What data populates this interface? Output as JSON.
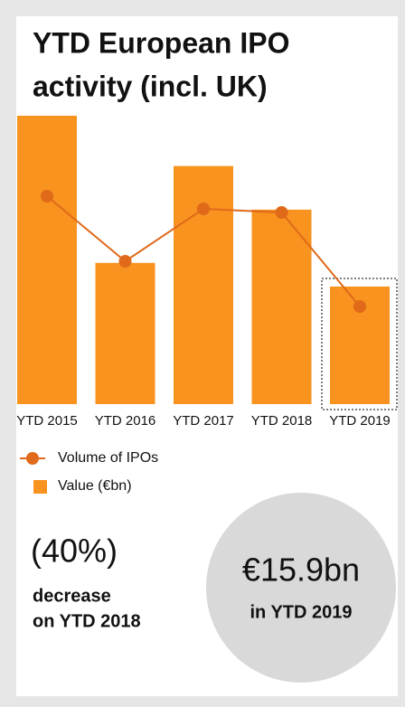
{
  "chart_data": {
    "type": "bar-line",
    "title": [
      "YTD European IPO",
      "activity (incl. UK)"
    ],
    "categories": [
      "YTD 2015",
      "YTD 2016",
      "YTD 2017",
      "YTD 2018",
      "YTD 2019"
    ],
    "series": [
      {
        "name": "Value (€bn)",
        "type": "bar",
        "color": "#f7931e",
        "values": [
          39.0,
          19.1,
          32.2,
          26.3,
          15.9
        ]
      },
      {
        "name": "Volume of IPOs",
        "type": "line",
        "color": "#e0691a",
        "values": [
          115,
          79,
          108,
          106,
          54
        ]
      }
    ],
    "highlight": "YTD 2019",
    "callouts": [
      {
        "headline": "(40%)",
        "lines": [
          "decrease",
          "on YTD 2018"
        ]
      },
      {
        "headline": "€15.9bn",
        "lines": [
          "in YTD 2019"
        ]
      }
    ]
  }
}
